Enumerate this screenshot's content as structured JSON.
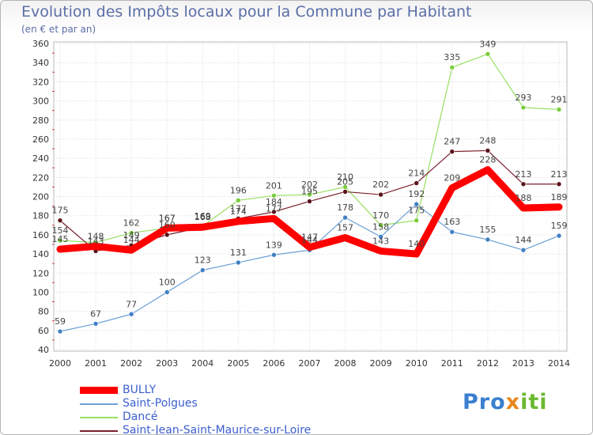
{
  "title": "Evolution des Impôts locaux pour la Commune par Habitant",
  "subtitle": "(en € et par an)",
  "logo": {
    "text": "Proxiti",
    "part1": "Pro",
    "part2": "x",
    "part3": "iti"
  },
  "colors": {
    "BULLY": "#ff0000",
    "Saint-Polgues": "#6a9fd6",
    "Dancé": "#98e060",
    "Saint-Jean-Saint-Maurice-sur-Loire": "#7a1f2b"
  },
  "chart_data": {
    "type": "line",
    "title": "Evolution des Impôts locaux pour la Commune par Habitant",
    "subtitle": "(en € et par an)",
    "xlabel": "",
    "ylabel": "",
    "ylim": [
      40,
      360
    ],
    "yticks": [
      40,
      60,
      80,
      100,
      120,
      140,
      160,
      180,
      200,
      220,
      240,
      260,
      280,
      300,
      320,
      340,
      360
    ],
    "grid": true,
    "legend": "bottom-left",
    "categories": [
      "2000",
      "2001",
      "2002",
      "2003",
      "2004",
      "2005",
      "2006",
      "2007",
      "2008",
      "2009",
      "2010",
      "2011",
      "2012",
      "2013",
      "2014"
    ],
    "series": [
      {
        "name": "Dancé",
        "values": [
          154,
          152,
          162,
          167,
          169,
          196,
          201,
          202,
          210,
          170,
          175,
          335,
          349,
          293,
          291
        ],
        "show_labels": [
          true,
          false,
          true,
          true,
          true,
          true,
          true,
          true,
          true,
          true,
          true,
          true,
          true,
          true,
          true
        ]
      },
      {
        "name": "Saint-Jean-Saint-Maurice-sur-Loire",
        "values": [
          175,
          143,
          149,
          160,
          168,
          177,
          184,
          195,
          205,
          202,
          214,
          247,
          248,
          213,
          213
        ],
        "show_labels": [
          true,
          true,
          true,
          true,
          true,
          true,
          true,
          true,
          true,
          true,
          true,
          true,
          true,
          true,
          true
        ]
      },
      {
        "name": "Saint-Polgues",
        "values": [
          59,
          67,
          77,
          100,
          123,
          131,
          139,
          144,
          178,
          158,
          192,
          163,
          155,
          144,
          159
        ],
        "show_labels": [
          true,
          true,
          true,
          true,
          true,
          true,
          true,
          true,
          true,
          true,
          true,
          true,
          true,
          true,
          true
        ]
      },
      {
        "name": "BULLY",
        "values": [
          145,
          148,
          144,
          167,
          168,
          174,
          177,
          147,
          157,
          143,
          140,
          209,
          228,
          188,
          189
        ],
        "show_labels": [
          true,
          true,
          true,
          true,
          true,
          true,
          true,
          true,
          true,
          true,
          true,
          true,
          true,
          true,
          true
        ]
      }
    ]
  }
}
